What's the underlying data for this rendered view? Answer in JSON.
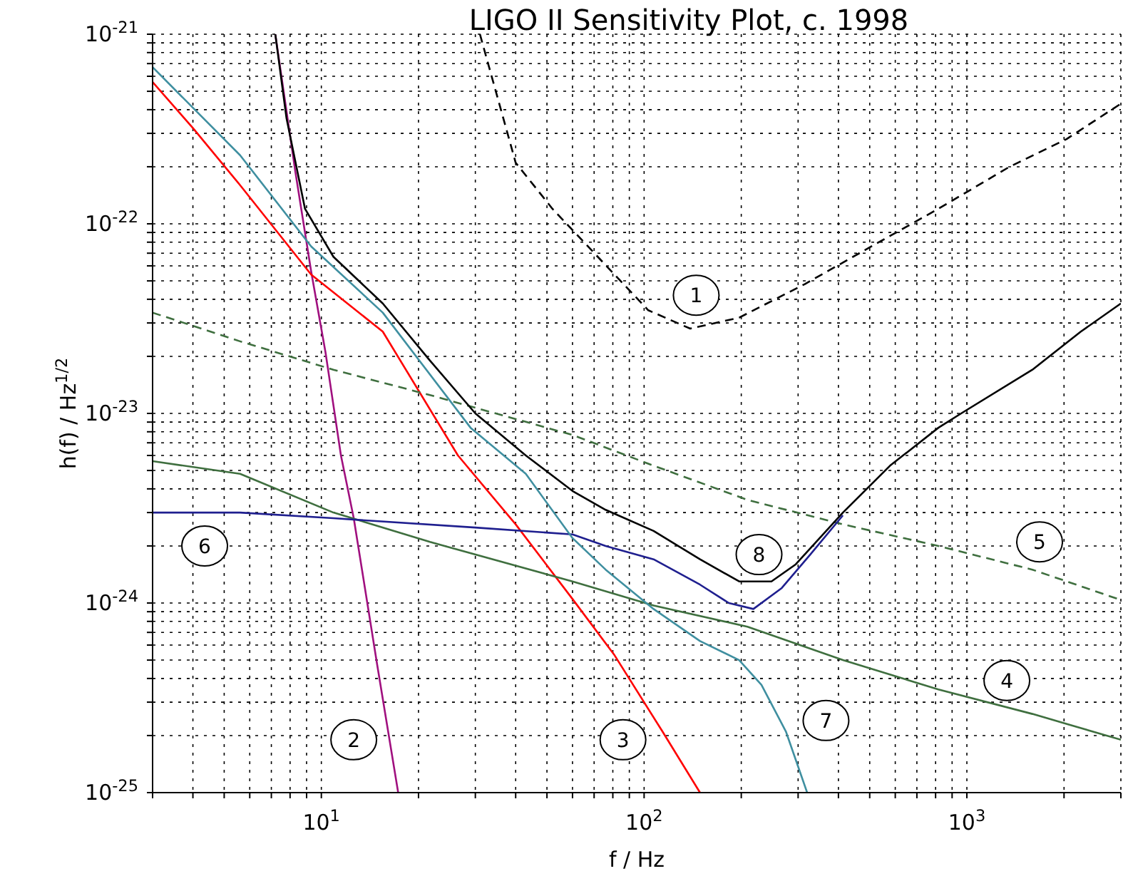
{
  "chart_data": {
    "type": "line",
    "title": "LIGO II Sensitivity Plot, c. 1998",
    "xlabel": "f / Hz",
    "ylabel": "h(f) / Hz$^{1/2}$",
    "log": "xy",
    "grid": true,
    "xlim": [
      3,
      3000
    ],
    "ylim": [
      1e-25,
      1e-21
    ],
    "xticks": [
      {
        "value": 3,
        "label": null
      },
      {
        "value": 4,
        "label": null
      },
      {
        "value": 5,
        "label": null
      },
      {
        "value": 6,
        "label": null
      },
      {
        "value": 7,
        "label": null
      },
      {
        "value": 8,
        "label": null
      },
      {
        "value": 9,
        "label": null
      },
      {
        "value": 10,
        "label": "10$^{1}$"
      },
      {
        "value": 20,
        "label": null
      },
      {
        "value": 30,
        "label": null
      },
      {
        "value": 40,
        "label": null
      },
      {
        "value": 50,
        "label": null
      },
      {
        "value": 60,
        "label": null
      },
      {
        "value": 70,
        "label": null
      },
      {
        "value": 80,
        "label": null
      },
      {
        "value": 90,
        "label": null
      },
      {
        "value": 100,
        "label": "10$^{2}$"
      },
      {
        "value": 200,
        "label": null
      },
      {
        "value": 300,
        "label": null
      },
      {
        "value": 400,
        "label": null
      },
      {
        "value": 500,
        "label": null
      },
      {
        "value": 600,
        "label": null
      },
      {
        "value": 700,
        "label": null
      },
      {
        "value": 800,
        "label": null
      },
      {
        "value": 900,
        "label": null
      },
      {
        "value": 1000,
        "label": "10$^{3}$"
      },
      {
        "value": 2000,
        "label": null
      },
      {
        "value": 3000,
        "label": null
      }
    ],
    "yticks": [
      {
        "value": 1e-25,
        "label": "10$^{-25}$"
      },
      {
        "value": 2e-25,
        "label": null
      },
      {
        "value": 3e-25,
        "label": null
      },
      {
        "value": 4e-25,
        "label": null
      },
      {
        "value": 5e-25,
        "label": null
      },
      {
        "value": 6e-25,
        "label": null
      },
      {
        "value": 7e-25,
        "label": null
      },
      {
        "value": 8e-25,
        "label": null
      },
      {
        "value": 9e-25,
        "label": null
      },
      {
        "value": 1e-24,
        "label": "10$^{-24}$"
      },
      {
        "value": 2e-24,
        "label": null
      },
      {
        "value": 3e-24,
        "label": null
      },
      {
        "value": 4e-24,
        "label": null
      },
      {
        "value": 5e-24,
        "label": null
      },
      {
        "value": 6e-24,
        "label": null
      },
      {
        "value": 7e-24,
        "label": null
      },
      {
        "value": 8e-24,
        "label": null
      },
      {
        "value": 9e-24,
        "label": null
      },
      {
        "value": 1e-23,
        "label": "10$^{-23}$"
      },
      {
        "value": 2e-23,
        "label": null
      },
      {
        "value": 3e-23,
        "label": null
      },
      {
        "value": 4e-23,
        "label": null
      },
      {
        "value": 5e-23,
        "label": null
      },
      {
        "value": 6e-23,
        "label": null
      },
      {
        "value": 7e-23,
        "label": null
      },
      {
        "value": 8e-23,
        "label": null
      },
      {
        "value": 9e-23,
        "label": null
      },
      {
        "value": 1e-22,
        "label": "10$^{-22}$"
      },
      {
        "value": 2e-22,
        "label": null
      },
      {
        "value": 3e-22,
        "label": null
      },
      {
        "value": 4e-22,
        "label": null
      },
      {
        "value": 5e-22,
        "label": null
      },
      {
        "value": 6e-22,
        "label": null
      },
      {
        "value": 7e-22,
        "label": null
      },
      {
        "value": 8e-22,
        "label": null
      },
      {
        "value": 9e-22,
        "label": null
      },
      {
        "value": 1e-21,
        "label": "10$^{-21}$"
      }
    ],
    "series": [
      {
        "color": "#000000",
        "line_style": "dashed",
        "x": [
          31,
          40,
          52,
          103,
          139,
          197,
          314,
          506,
          816,
          1356,
          2037,
          3000
        ],
        "values": [
          1e-21,
          2.1e-22,
          1.2e-22,
          3.5e-23,
          2.8e-23,
          3.2e-23,
          4.8e-23,
          7.6e-23,
          1.2e-22,
          2e-22,
          2.8e-22,
          4.3e-22
        ]
      },
      {
        "color": "#a0107f",
        "x": [
          7.2,
          8.3,
          9.3,
          10.3,
          11.5,
          12.6,
          14.9,
          17.3
        ],
        "values": [
          1e-21,
          1.9e-22,
          5.6e-23,
          2.1e-23,
          6e-24,
          2.8e-24,
          4.7e-25,
          1e-25
        ]
      },
      {
        "color": "#ff0000",
        "x": [
          3,
          4,
          5.6,
          9.3,
          15.5,
          26.5,
          40,
          60,
          81,
          114,
          149
        ],
        "values": [
          5.6e-22,
          3.2e-22,
          1.6e-22,
          5.4e-23,
          2.7e-23,
          6e-24,
          2.6e-24,
          1.05e-24,
          5.3e-25,
          2.1e-25,
          1e-25
        ]
      },
      {
        "color": "#3f6f3f",
        "x": [
          3,
          5.6,
          10.9,
          21.7,
          60,
          107,
          209,
          413,
          816,
          1596,
          3000
        ],
        "values": [
          5.6e-24,
          4.8e-24,
          3e-24,
          2.1e-24,
          1.3e-24,
          9.7e-25,
          7.5e-25,
          5e-25,
          3.5e-25,
          2.6e-25,
          1.9e-25
        ]
      },
      {
        "color": "#3f6f3f",
        "line_style": "dashed",
        "x": [
          3,
          5.6,
          10.9,
          21.7,
          60,
          107,
          209,
          413,
          816,
          1596,
          2938
        ],
        "values": [
          3.4e-23,
          2.4e-23,
          1.7e-23,
          1.25e-23,
          7.7e-24,
          5.3e-24,
          3.5e-24,
          2.6e-24,
          2e-24,
          1.5e-24,
          1.05e-24
        ]
      },
      {
        "color": "#1f1f8f",
        "x": [
          3,
          5.6,
          10.9,
          30,
          60,
          76,
          107,
          149,
          183,
          218,
          267,
          327,
          413
        ],
        "values": [
          3e-24,
          3e-24,
          2.8e-24,
          2.5e-24,
          2.3e-24,
          2e-24,
          1.7e-24,
          1.25e-24,
          1e-24,
          9.3e-25,
          1.2e-24,
          1.8e-24,
          2.9e-24
        ]
      },
      {
        "color": "#3f8fa0",
        "x": [
          3,
          5.6,
          9.3,
          15.5,
          29,
          43,
          60,
          76,
          107,
          149,
          197,
          231,
          275,
          320
        ],
        "values": [
          6.7e-22,
          2.3e-22,
          7.6e-23,
          3.4e-23,
          8.4e-24,
          4.8e-24,
          2.2e-24,
          1.5e-24,
          9.3e-25,
          6.3e-25,
          5e-25,
          3.7e-25,
          2.1e-25,
          1e-25
        ]
      },
      {
        "color": "#000000",
        "x": [
          7.2,
          7.8,
          8.9,
          10.9,
          15.5,
          21.7,
          30,
          43,
          60,
          76,
          107,
          149,
          197,
          248,
          295,
          413,
          578,
          816,
          960,
          1596,
          2254,
          3000
        ],
        "values": [
          1e-21,
          3.6e-22,
          1.2e-22,
          6.7e-23,
          3.8e-23,
          1.9e-23,
          1e-23,
          6e-24,
          3.9e-24,
          3.1e-24,
          2.4e-24,
          1.7e-24,
          1.3e-24,
          1.3e-24,
          1.6e-24,
          3e-24,
          5.3e-24,
          8.4e-24,
          1e-23,
          1.7e-23,
          2.7e-23,
          3.8e-23
        ]
      }
    ],
    "annotations": [
      {
        "text": "1",
        "x": 145,
        "y": 4.2e-23
      },
      {
        "text": "2",
        "x": 12.6,
        "y": 1.9e-25
      },
      {
        "text": "3",
        "x": 86,
        "y": 1.9e-25
      },
      {
        "text": "4",
        "x": 1330,
        "y": 3.9e-25
      },
      {
        "text": "5",
        "x": 1680,
        "y": 2.1e-24
      },
      {
        "text": "6",
        "x": 4.35,
        "y": 2e-24
      },
      {
        "text": "7",
        "x": 366,
        "y": 2.4e-25
      },
      {
        "text": "8",
        "x": 227,
        "y": 1.8e-24
      }
    ]
  }
}
